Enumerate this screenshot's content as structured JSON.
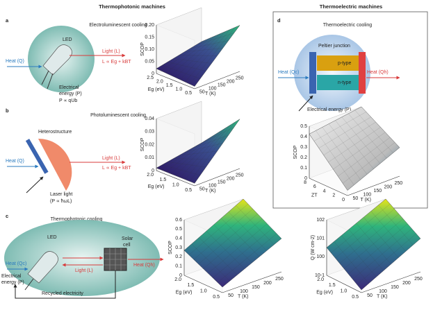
{
  "headers": {
    "left": "Thermophotonic machines",
    "right": "Thermoelectric machines"
  },
  "panels": [
    {
      "letter": "a",
      "title": "Electroluminescent cooling",
      "texts": {
        "led": "LED",
        "heat": "Heat (Q)",
        "light": "Light (L)",
        "light_rel": "L ∝ Eg + kBT",
        "energy": [
          "Electrical",
          "energy (P)"
        ],
        "power_rel": "P ∝ qUb"
      },
      "plots": [
        {
          "z_label": "SCOP",
          "z_ticks": [
            "0",
            "0.05",
            "0.10",
            "0.15",
            "0.20"
          ],
          "x_label": "Eg (eV)",
          "x_ticks": [
            "2.5",
            "2.0",
            "1.5",
            "1.0",
            "0.5"
          ],
          "y_label": "T (K)",
          "y_ticks": [
            "50",
            "100",
            "150",
            "200",
            "250"
          ]
        }
      ]
    },
    {
      "letter": "b",
      "title": "Photoluminescent cooling",
      "texts": {
        "hetero": "Heterostructure",
        "heat": "Heat (Q)",
        "light": "Light (L)",
        "light_rel": "L ∝ Eg + kBT",
        "laser": [
          "Laser light",
          "(P ∝ ħωL)"
        ]
      },
      "plots": [
        {
          "z_label": "SCOP",
          "z_ticks": [
            "0",
            "0.01",
            "0.02",
            "0.03",
            "0.04"
          ],
          "x_label": "Eg (eV)",
          "x_ticks": [
            "2.0",
            "1.5",
            "1.0",
            "0.5"
          ],
          "y_label": "T (K)",
          "y_ticks": [
            "50",
            "100",
            "150",
            "200",
            "250"
          ]
        }
      ]
    },
    {
      "letter": "c",
      "title": "Thermophotonic cooling",
      "texts": {
        "led": "LED",
        "cell": [
          "Solar",
          "cell"
        ],
        "heat_c": "Heat (Qc)",
        "light": "Light (L)",
        "heat_h": "Heat (Qh)",
        "energy": [
          "Electrical",
          "energy (P)"
        ],
        "recycled": "Recycled electricity"
      },
      "plots": [
        {
          "z_label": "SCOP",
          "z_ticks": [
            "0",
            "0.1",
            "0.2",
            "0.3",
            "0.4",
            "0.5",
            "0.6"
          ],
          "x_label": "Eg (eV)",
          "x_ticks": [
            "2.0",
            "1.5",
            "1.0",
            "0.5"
          ],
          "y_label": "T (K)",
          "y_ticks": [
            "50",
            "100",
            "150",
            "200",
            "250"
          ]
        },
        {
          "z_label": "Q (W cm-2)",
          "z_ticks": [
            "10-1",
            "100",
            "101",
            "102"
          ],
          "x_label": "Eg (eV)",
          "x_ticks": [
            "2.0",
            "1.5",
            "1.0",
            "0.5"
          ],
          "y_label": "T (K)",
          "y_ticks": [
            "50",
            "100",
            "150",
            "200",
            "250"
          ]
        }
      ]
    },
    {
      "letter": "d",
      "title": "Thermoelectric cooling",
      "texts": {
        "peltier": "Peltier junction",
        "p": "p-type",
        "n": "n-type",
        "heat_c": "Heat (Qc)",
        "heat_h": "Heat (Qh)",
        "energy": "Electrical energy (P)"
      },
      "plots": [
        {
          "z_label": "SCOP",
          "z_ticks": [
            "0",
            "0.1",
            "0.2",
            "0.3",
            "0.4",
            "0.5"
          ],
          "x_label": "ZT",
          "x_ticks": [
            "8",
            "6",
            "4",
            "2",
            "0"
          ],
          "y_label": "T (K)",
          "y_ticks": [
            "50",
            "100",
            "150",
            "200",
            "250"
          ]
        }
      ]
    }
  ]
}
